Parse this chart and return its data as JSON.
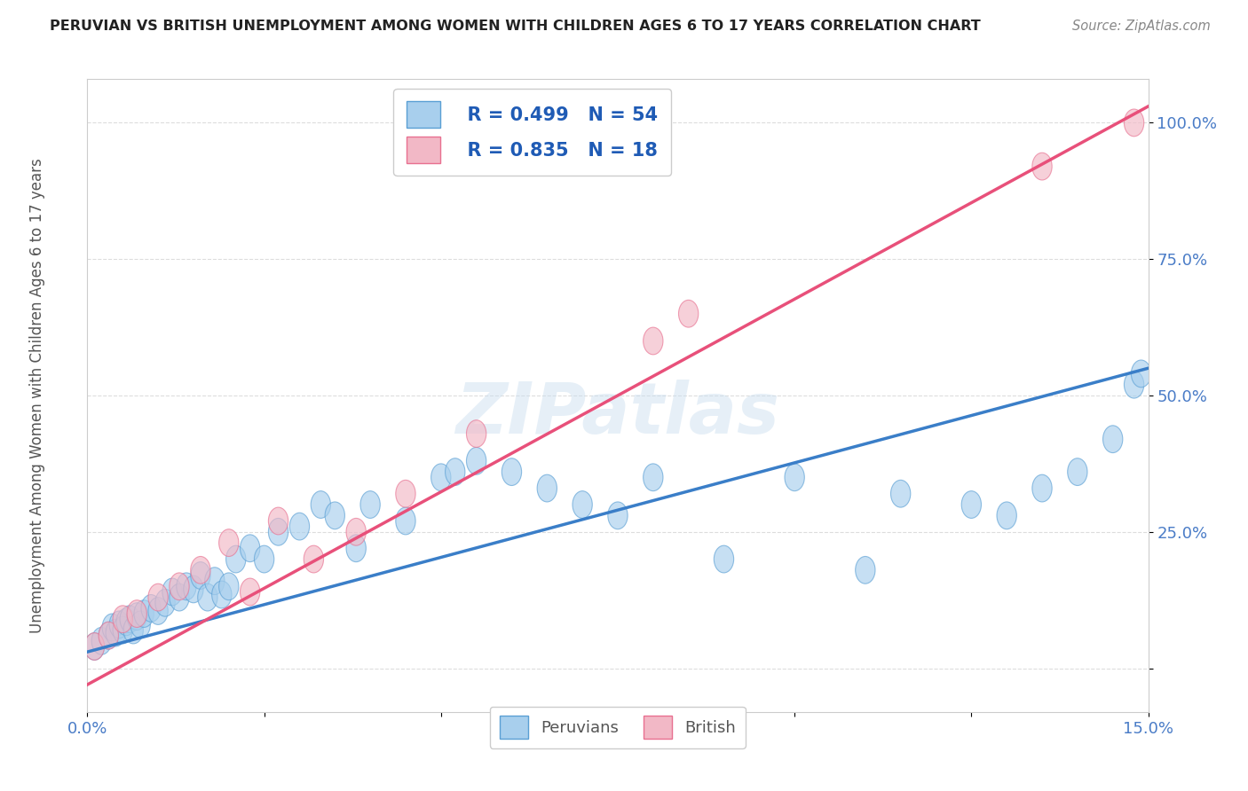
{
  "title": "PERUVIAN VS BRITISH UNEMPLOYMENT AMONG WOMEN WITH CHILDREN AGES 6 TO 17 YEARS CORRELATION CHART",
  "source": "Source: ZipAtlas.com",
  "ylabel": "Unemployment Among Women with Children Ages 6 to 17 years",
  "xlim": [
    0.0,
    15.0
  ],
  "ylim": [
    -8.0,
    108.0
  ],
  "x_ticks": [
    0.0,
    2.5,
    5.0,
    7.5,
    10.0,
    12.5,
    15.0
  ],
  "x_tick_labels": [
    "0.0%",
    "",
    "",
    "",
    "",
    "",
    "15.0%"
  ],
  "y_ticks": [
    0,
    25,
    50,
    75,
    100
  ],
  "y_tick_labels": [
    "",
    "25.0%",
    "50.0%",
    "75.0%",
    "100.0%"
  ],
  "peruvian_color": "#A8CFED",
  "british_color": "#F2B8C6",
  "peruvian_edge_color": "#5A9FD4",
  "british_edge_color": "#E87090",
  "peruvian_line_color": "#3A7EC8",
  "british_line_color": "#E8507A",
  "legend_text_color": "#1F5BB5",
  "legend_R_peru": "R = 0.499",
  "legend_N_peru": "N = 54",
  "legend_R_brit": "R = 0.835",
  "legend_N_brit": "N = 18",
  "watermark": "ZIPatlas",
  "peruvian_x": [
    0.1,
    0.2,
    0.3,
    0.35,
    0.4,
    0.45,
    0.5,
    0.55,
    0.6,
    0.65,
    0.7,
    0.75,
    0.8,
    0.9,
    1.0,
    1.1,
    1.2,
    1.3,
    1.4,
    1.5,
    1.6,
    1.7,
    1.8,
    1.9,
    2.0,
    2.1,
    2.3,
    2.5,
    2.7,
    3.0,
    3.3,
    3.5,
    3.8,
    4.0,
    4.5,
    5.0,
    5.2,
    5.5,
    6.0,
    6.5,
    7.0,
    7.5,
    8.0,
    9.0,
    10.0,
    11.0,
    11.5,
    12.5,
    13.0,
    13.5,
    14.0,
    14.5,
    14.8,
    14.9
  ],
  "peruvian_y": [
    4.0,
    5.0,
    6.0,
    7.5,
    6.5,
    8.0,
    7.0,
    8.5,
    9.0,
    7.0,
    9.5,
    8.0,
    10.0,
    11.0,
    10.5,
    12.0,
    14.0,
    13.0,
    15.0,
    14.5,
    17.0,
    13.0,
    16.0,
    13.5,
    15.0,
    20.0,
    22.0,
    20.0,
    25.0,
    26.0,
    30.0,
    28.0,
    22.0,
    30.0,
    27.0,
    35.0,
    36.0,
    38.0,
    36.0,
    33.0,
    30.0,
    28.0,
    35.0,
    20.0,
    35.0,
    18.0,
    32.0,
    30.0,
    28.0,
    33.0,
    36.0,
    42.0,
    52.0,
    54.0
  ],
  "british_x": [
    0.1,
    0.3,
    0.5,
    0.7,
    1.0,
    1.3,
    1.6,
    2.0,
    2.3,
    2.7,
    3.2,
    3.8,
    4.5,
    5.5,
    8.0,
    8.5,
    13.5,
    14.8
  ],
  "british_y": [
    4.0,
    6.0,
    9.0,
    10.0,
    13.0,
    15.0,
    18.0,
    23.0,
    14.0,
    27.0,
    20.0,
    25.0,
    32.0,
    43.0,
    60.0,
    65.0,
    92.0,
    100.0
  ],
  "peru_trendline_x": [
    0.0,
    15.0
  ],
  "peru_trendline_y": [
    3.0,
    55.0
  ],
  "brit_trendline_x": [
    0.0,
    15.0
  ],
  "brit_trendline_y": [
    -3.0,
    103.0
  ],
  "background_color": "#FFFFFF",
  "grid_color": "#DDDDDD",
  "title_color": "#222222",
  "axis_label_color": "#555555",
  "tick_color": "#4A7CC7",
  "grid_linestyle": "--"
}
